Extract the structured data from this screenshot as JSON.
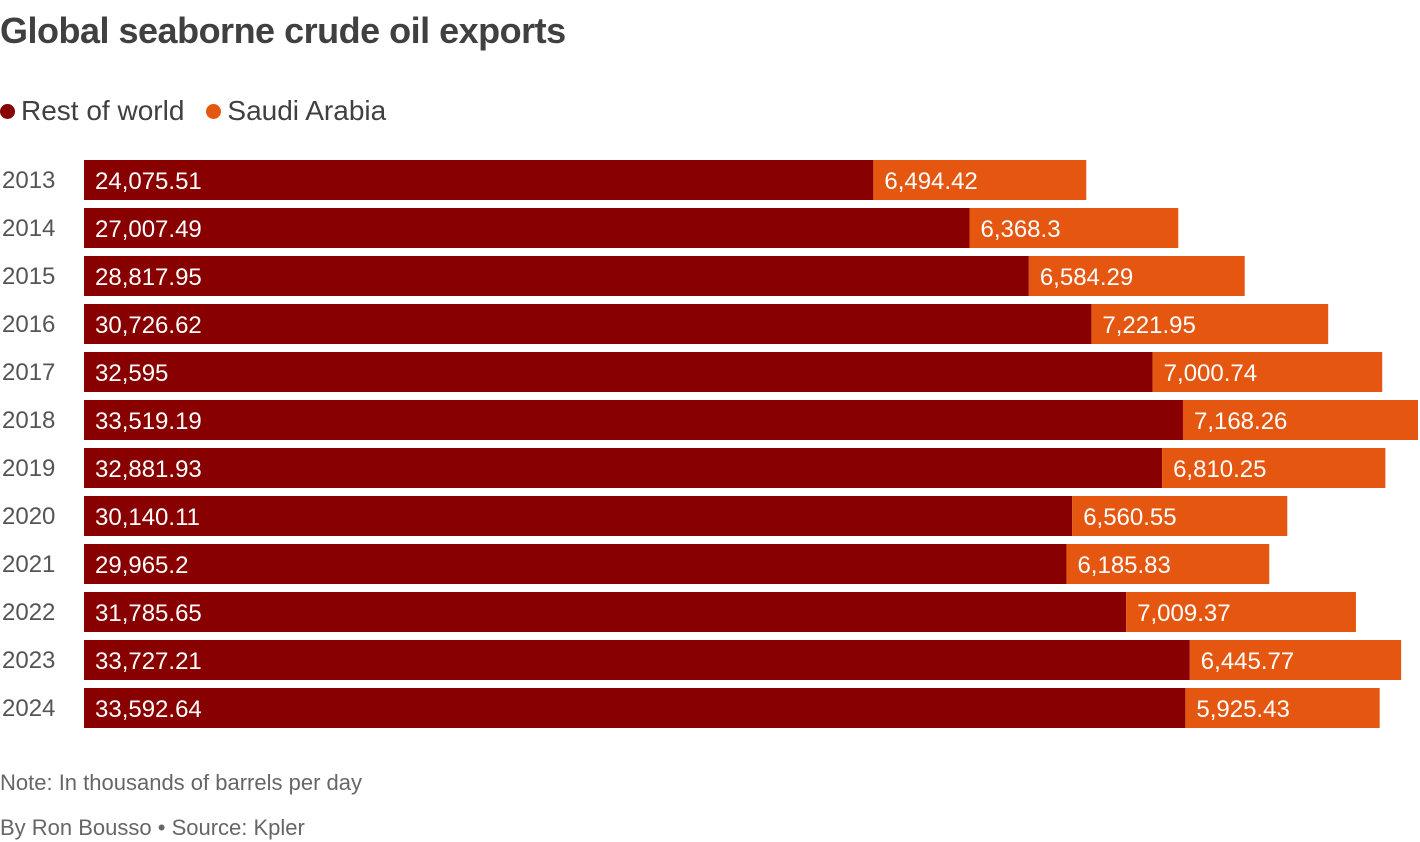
{
  "chart_data": {
    "type": "bar",
    "orientation": "horizontal",
    "stacked": true,
    "title": "Global seaborne crude oil exports",
    "note": "Note: In thousands of barrels per day",
    "source": "By Ron Bousso • Source: Kpler",
    "legend_position": "top-left",
    "grid": false,
    "categories": [
      "2013",
      "2014",
      "2015",
      "2016",
      "2017",
      "2018",
      "2019",
      "2020",
      "2021",
      "2022",
      "2023",
      "2024"
    ],
    "series": [
      {
        "name": "Rest of world",
        "color": "#880000",
        "values": [
          24075.51,
          27007.49,
          28817.95,
          30726.62,
          32595,
          33519.19,
          32881.93,
          30140.11,
          29965.2,
          31785.65,
          33727.21,
          33592.64
        ],
        "labels": [
          "24,075.51",
          "27,007.49",
          "28,817.95",
          "30,726.62",
          "32,595",
          "33,519.19",
          "32,881.93",
          "30,140.11",
          "29,965.2",
          "31,785.65",
          "33,727.21",
          "33,592.64"
        ]
      },
      {
        "name": "Saudi Arabia",
        "color": "#e55711",
        "values": [
          6494.42,
          6368.3,
          6584.29,
          7221.95,
          7000.74,
          7168.26,
          6810.25,
          6560.55,
          6185.83,
          7009.37,
          6445.77,
          5925.43
        ],
        "labels": [
          "6,494.42",
          "6,368.3",
          "6,584.29",
          "7,221.95",
          "7,000.74",
          "7,168.26",
          "6,810.25",
          "6,560.55",
          "6,185.83",
          "7,009.37",
          "6,445.77",
          "5,925.43"
        ]
      }
    ]
  }
}
